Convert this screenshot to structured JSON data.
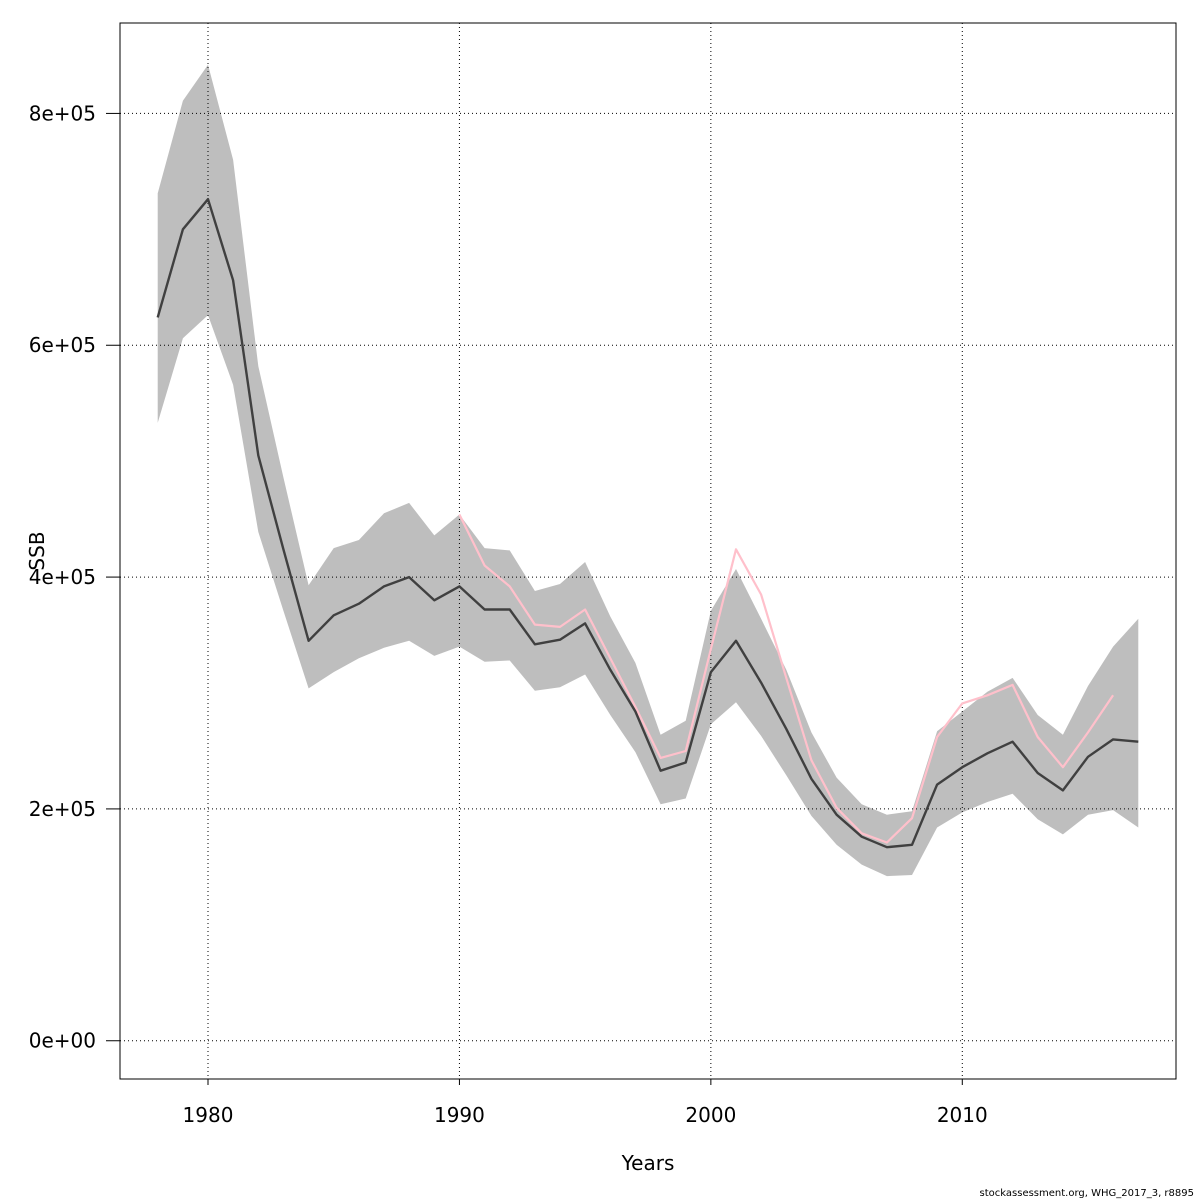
{
  "chart_data": {
    "type": "line",
    "title": "",
    "xlabel": "Years",
    "ylabel": "SSB",
    "xlim": [
      1976.5,
      2018.5
    ],
    "ylim": [
      -33000,
      878000
    ],
    "x_ticks": [
      1980,
      1990,
      2000,
      2010
    ],
    "x_tick_labels": [
      "1980",
      "1990",
      "2000",
      "2010"
    ],
    "y_ticks": [
      0,
      200000,
      400000,
      600000,
      800000
    ],
    "y_tick_labels": [
      "0e+00",
      "2e+05",
      "4e+05",
      "6e+05",
      "8e+05"
    ],
    "grid": true,
    "colors": {
      "band": "#bebebe",
      "estimate": "#404040",
      "retro": "#ffc0cb",
      "grid": "#000000"
    },
    "series": [
      {
        "role": "estimate",
        "x": [
          1978,
          1979,
          1980,
          1981,
          1982,
          1983,
          1984,
          1985,
          1986,
          1987,
          1988,
          1989,
          1990,
          1991,
          1992,
          1993,
          1994,
          1995,
          1996,
          1997,
          1998,
          1999,
          2000,
          2001,
          2002,
          2003,
          2004,
          2005,
          2006,
          2007,
          2008,
          2009,
          2010,
          2011,
          2012,
          2013,
          2014,
          2015,
          2016,
          2017
        ],
        "values": [
          624000,
          700000,
          726000,
          656000,
          505000,
          424000,
          345000,
          367000,
          377000,
          392000,
          400000,
          380000,
          392000,
          372000,
          372000,
          342000,
          346000,
          360000,
          320000,
          284000,
          233000,
          240000,
          318000,
          345000,
          309000,
          269000,
          226000,
          195000,
          176000,
          167000,
          169000,
          221000,
          236000,
          248000,
          258000,
          231000,
          216000,
          245000,
          260000,
          258000
        ]
      },
      {
        "role": "retro",
        "x": [
          1990,
          1991,
          1992,
          1993,
          1994,
          1995,
          1996,
          1997,
          1998,
          1999,
          2000,
          2001,
          2002,
          2003,
          2004,
          2005,
          2006,
          2007,
          2008,
          2009,
          2010,
          2011,
          2012,
          2013,
          2014,
          2015,
          2016
        ],
        "values": [
          454000,
          410000,
          392000,
          359000,
          357000,
          372000,
          330000,
          288000,
          244000,
          250000,
          338000,
          424000,
          385000,
          313000,
          242000,
          201000,
          179000,
          171000,
          192000,
          262000,
          291000,
          298000,
          307000,
          262000,
          236000,
          266000,
          298000
        ]
      }
    ],
    "band": {
      "role": "confidence-interval",
      "x": [
        1978,
        1979,
        1980,
        1981,
        1982,
        1983,
        1984,
        1985,
        1986,
        1987,
        1988,
        1989,
        1990,
        1991,
        1992,
        1993,
        1994,
        1995,
        1996,
        1997,
        1998,
        1999,
        2000,
        2001,
        2002,
        2003,
        2004,
        2005,
        2006,
        2007,
        2008,
        2009,
        2010,
        2011,
        2012,
        2013,
        2014,
        2015,
        2016,
        2017
      ],
      "upper": [
        731000,
        811000,
        842000,
        760000,
        582000,
        486000,
        393000,
        425000,
        432000,
        455000,
        464000,
        436000,
        454000,
        425000,
        423000,
        388000,
        394000,
        413000,
        366000,
        326000,
        264000,
        276000,
        371000,
        407000,
        364000,
        320000,
        266000,
        227000,
        204000,
        195000,
        198000,
        267000,
        284000,
        301000,
        313000,
        281000,
        264000,
        306000,
        340000,
        364000
      ],
      "lower": [
        533000,
        606000,
        626000,
        566000,
        439000,
        371000,
        304000,
        318000,
        330000,
        339000,
        345000,
        332000,
        340000,
        327000,
        328000,
        302000,
        305000,
        316000,
        281000,
        249000,
        204000,
        209000,
        273000,
        292000,
        263000,
        229000,
        194000,
        169000,
        152000,
        142000,
        143000,
        184000,
        197000,
        206000,
        213000,
        191000,
        178000,
        195000,
        199000,
        184000
      ]
    }
  },
  "footnote": "stockassessment.org, WHG_2017_3, r8895"
}
